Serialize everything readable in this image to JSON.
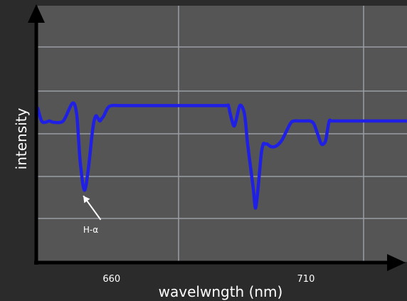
{
  "chart_data": {
    "type": "line",
    "xlabel": "wavelwngth (nm)",
    "ylabel": "intensity",
    "xlim": [
      641,
      736
    ],
    "ylim": [
      0,
      10
    ],
    "x_ticks": [
      660,
      710
    ],
    "x_tick_labels": [
      "660",
      "710"
    ],
    "grid": true,
    "colors": {
      "background": "#2b2b2b",
      "plot_background": "#555555",
      "grid": "#9a9fa5",
      "axis": "#000000",
      "line": "#1f1fe6",
      "text": "#ffffff",
      "annotation": "#ffffff"
    },
    "series": [
      {
        "x": [
          641,
          642,
          643,
          644,
          645,
          647,
          648,
          650,
          651,
          651.5,
          652,
          653,
          654,
          655,
          655.5,
          656,
          656.5,
          657,
          657.5,
          658,
          659,
          660,
          662,
          665,
          670,
          680,
          689,
          690,
          690.5,
          691,
          691.5,
          692,
          693,
          694,
          694.5,
          695,
          696,
          696.5,
          697,
          697.5,
          698,
          698.5,
          699,
          699.5,
          700,
          701,
          702,
          703,
          704,
          706,
          707,
          708,
          709,
          710,
          711,
          712,
          713,
          714,
          715,
          715.5,
          716,
          716.5,
          717,
          718,
          719,
          720,
          721,
          723,
          725,
          730,
          736
        ],
        "y": [
          6.0,
          5.5,
          5.45,
          5.5,
          5.45,
          5.45,
          5.6,
          6.2,
          5.8,
          4.8,
          3.8,
          2.8,
          3.6,
          5.0,
          5.5,
          5.7,
          5.6,
          5.5,
          5.6,
          5.7,
          6.0,
          6.1,
          6.1,
          6.1,
          6.1,
          6.1,
          6.1,
          6.1,
          5.8,
          5.5,
          5.3,
          5.5,
          6.1,
          5.9,
          5.4,
          4.6,
          3.4,
          2.8,
          2.1,
          2.6,
          3.4,
          4.2,
          4.6,
          4.6,
          4.6,
          4.5,
          4.5,
          4.6,
          4.8,
          5.4,
          5.5,
          5.5,
          5.5,
          5.5,
          5.5,
          5.4,
          5.0,
          4.6,
          4.7,
          5.1,
          5.5,
          5.5,
          5.5,
          5.5,
          5.5,
          5.5,
          5.5,
          5.5,
          5.5,
          5.5,
          5.5
        ]
      }
    ],
    "annotations": [
      {
        "text": "H-α",
        "target": {
          "x": 652,
          "y": 2.8
        },
        "label_at": {
          "x": 655,
          "y": 1.2
        }
      }
    ]
  }
}
